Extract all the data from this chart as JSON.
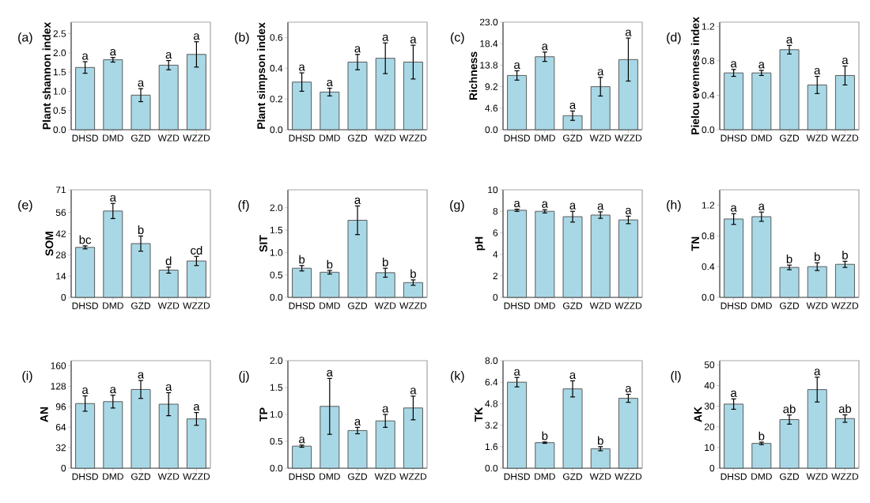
{
  "chart_data": [
    {
      "type": "bar",
      "title": "(a)",
      "ylabel": "Plant shannon index",
      "categories": [
        "DHSD",
        "DMD",
        "GZD",
        "WZD",
        "WZZD"
      ],
      "values": [
        1.62,
        1.82,
        0.9,
        1.68,
        1.96
      ],
      "errors": [
        0.15,
        0.06,
        0.17,
        0.12,
        0.33
      ],
      "color": "#a8d8e6",
      "ylim": [
        0,
        2.8
      ],
      "yticks": [
        {
          "value": 0,
          "label": "0.0"
        },
        0.5,
        {
          "value": 1,
          "label": "1.0"
        },
        1.5,
        {
          "value": 2,
          "label": "2.0"
        },
        2.5
      ],
      "annotations": [
        {
          "text": "a",
          "x": "DHSD",
          "y": 1.77
        },
        {
          "text": "a",
          "x": "DMD",
          "y": 1.88
        },
        {
          "text": "a",
          "x": "GZD",
          "y": 1.07
        },
        {
          "text": "a",
          "x": "WZD",
          "y": 1.8
        },
        {
          "text": "a",
          "x": "WZZD",
          "y": 2.29
        }
      ]
    },
    {
      "type": "bar",
      "title": "(b)",
      "ylabel": "Plant simpson index",
      "categories": [
        "DHSD",
        "DMD",
        "GZD",
        "WZD",
        "WZZD"
      ],
      "values": [
        0.31,
        0.245,
        0.44,
        0.465,
        0.44
      ],
      "errors": [
        0.06,
        0.025,
        0.05,
        0.1,
        0.11
      ],
      "color": "#a8d8e6",
      "ylim": [
        0,
        0.7
      ],
      "yticks": [
        {
          "value": 0,
          "label": "0.0"
        },
        0.2,
        0.4,
        0.6
      ],
      "annotations": [
        {
          "text": "a",
          "x": "DHSD",
          "y": 0.37
        },
        {
          "text": "a",
          "x": "DMD",
          "y": 0.27
        },
        {
          "text": "a",
          "x": "GZD",
          "y": 0.49
        },
        {
          "text": "a",
          "x": "WZD",
          "y": 0.565
        },
        {
          "text": "a",
          "x": "WZZD",
          "y": 0.55
        }
      ]
    },
    {
      "type": "bar",
      "title": "(c)",
      "ylabel": "Richness",
      "categories": [
        "DHSD",
        "DMD",
        "GZD",
        "WZD",
        "WZZD"
      ],
      "values": [
        11.6,
        15.6,
        3.0,
        9.2,
        15.0
      ],
      "errors": [
        1.0,
        1.0,
        1.0,
        2.0,
        4.6
      ],
      "color": "#a8d8e6",
      "ylim": [
        0,
        23
      ],
      "yticks": [
        {
          "value": 0,
          "label": "0.0"
        },
        4.6,
        9.2,
        13.8,
        18.4,
        {
          "value": 23,
          "label": "23.0"
        }
      ],
      "annotations": [
        {
          "text": "a",
          "x": "DHSD",
          "y": 12.6
        },
        {
          "text": "a",
          "x": "DMD",
          "y": 16.6
        },
        {
          "text": "a",
          "x": "GZD",
          "y": 4.0
        },
        {
          "text": "a",
          "x": "WZD",
          "y": 11.2
        },
        {
          "text": "a",
          "x": "WZZD",
          "y": 19.6
        }
      ]
    },
    {
      "type": "bar",
      "title": "(d)",
      "ylabel": "Pielou evenness index",
      "categories": [
        "DHSD",
        "DMD",
        "GZD",
        "WZD",
        "WZZD"
      ],
      "values": [
        0.66,
        0.66,
        0.93,
        0.52,
        0.63
      ],
      "errors": [
        0.04,
        0.03,
        0.05,
        0.1,
        0.11
      ],
      "color": "#a8d8e6",
      "ylim": [
        0,
        1.25
      ],
      "yticks": [
        {
          "value": 0,
          "label": "0.0"
        },
        0.4,
        0.8,
        1.2
      ],
      "annotations": [
        {
          "text": "a",
          "x": "DHSD",
          "y": 0.7
        },
        {
          "text": "a",
          "x": "DMD",
          "y": 0.69
        },
        {
          "text": "a",
          "x": "GZD",
          "y": 0.98
        },
        {
          "text": "a",
          "x": "WZD",
          "y": 0.62
        },
        {
          "text": "a",
          "x": "WZZD",
          "y": 0.74
        }
      ]
    },
    {
      "type": "bar",
      "title": "(e)",
      "ylabel": "SOM",
      "categories": [
        "DHSD",
        "DMD",
        "GZD",
        "WZD",
        "WZZD"
      ],
      "values": [
        33,
        57,
        35.5,
        18,
        24
      ],
      "errors": [
        1,
        5,
        5,
        2,
        3
      ],
      "color": "#a8d8e6",
      "ylim": [
        0,
        71
      ],
      "yticks": [
        0,
        14,
        28,
        42,
        56,
        71
      ],
      "annotations": [
        {
          "text": "bc",
          "x": "DHSD",
          "y": 34
        },
        {
          "text": "a",
          "x": "DMD",
          "y": 62
        },
        {
          "text": "b",
          "x": "GZD",
          "y": 40.5
        },
        {
          "text": "d",
          "x": "WZD",
          "y": 20
        },
        {
          "text": "cd",
          "x": "WZZD",
          "y": 27
        }
      ]
    },
    {
      "type": "bar",
      "title": "(f)",
      "ylabel": "SIT",
      "categories": [
        "DHSD",
        "DMD",
        "GZD",
        "WZD",
        "WZZD"
      ],
      "values": [
        0.65,
        0.56,
        1.72,
        0.55,
        0.33
      ],
      "errors": [
        0.06,
        0.04,
        0.32,
        0.1,
        0.06
      ],
      "color": "#a8d8e6",
      "ylim": [
        0,
        2.4
      ],
      "yticks": [
        {
          "value": 0,
          "label": "0.0"
        },
        0.5,
        {
          "value": 1,
          "label": "1.0"
        },
        1.5,
        {
          "value": 2,
          "label": "2.0"
        }
      ],
      "annotations": [
        {
          "text": "b",
          "x": "DHSD",
          "y": 0.71
        },
        {
          "text": "b",
          "x": "DMD",
          "y": 0.6
        },
        {
          "text": "a",
          "x": "GZD",
          "y": 2.04
        },
        {
          "text": "b",
          "x": "WZD",
          "y": 0.65
        },
        {
          "text": "b",
          "x": "WZZD",
          "y": 0.39
        }
      ]
    },
    {
      "type": "bar",
      "title": "(g)",
      "ylabel": "pH",
      "categories": [
        "DHSD",
        "DMD",
        "GZD",
        "WZD",
        "WZZD"
      ],
      "values": [
        8.1,
        8.0,
        7.5,
        7.65,
        7.2
      ],
      "errors": [
        0.1,
        0.15,
        0.5,
        0.3,
        0.35
      ],
      "color": "#a8d8e6",
      "ylim": [
        0,
        10
      ],
      "yticks": [
        0,
        2,
        4,
        6,
        8,
        10
      ],
      "annotations": [
        {
          "text": "a",
          "x": "DHSD",
          "y": 8.2
        },
        {
          "text": "a",
          "x": "DMD",
          "y": 8.15
        },
        {
          "text": "a",
          "x": "GZD",
          "y": 8.0
        },
        {
          "text": "a",
          "x": "WZD",
          "y": 7.95
        },
        {
          "text": "a",
          "x": "WZZD",
          "y": 7.55
        }
      ]
    },
    {
      "type": "bar",
      "title": "(h)",
      "ylabel": "TN",
      "categories": [
        "DHSD",
        "DMD",
        "GZD",
        "WZD",
        "WZZD"
      ],
      "values": [
        1.02,
        1.05,
        0.39,
        0.4,
        0.43
      ],
      "errors": [
        0.07,
        0.06,
        0.03,
        0.05,
        0.04
      ],
      "color": "#a8d8e6",
      "ylim": [
        0,
        1.4
      ],
      "yticks": [
        {
          "value": 0,
          "label": "0.0"
        },
        0.4,
        0.8,
        1.2
      ],
      "annotations": [
        {
          "text": "a",
          "x": "DHSD",
          "y": 1.09
        },
        {
          "text": "a",
          "x": "DMD",
          "y": 1.11
        },
        {
          "text": "b",
          "x": "GZD",
          "y": 0.42
        },
        {
          "text": "b",
          "x": "WZD",
          "y": 0.45
        },
        {
          "text": "b",
          "x": "WZZD",
          "y": 0.47
        }
      ]
    },
    {
      "type": "bar",
      "title": "(i)",
      "ylabel": "AN",
      "categories": [
        "DHSD",
        "DMD",
        "GZD",
        "WZD",
        "WZZD"
      ],
      "values": [
        101,
        104,
        123,
        100,
        77
      ],
      "errors": [
        12,
        10,
        14,
        18,
        10
      ],
      "color": "#a8d8e6",
      "ylim": [
        0,
        168
      ],
      "yticks": [
        0,
        32,
        64,
        96,
        128,
        160
      ],
      "annotations": [
        {
          "text": "a",
          "x": "DHSD",
          "y": 113
        },
        {
          "text": "a",
          "x": "DMD",
          "y": 114
        },
        {
          "text": "a",
          "x": "GZD",
          "y": 137
        },
        {
          "text": "a",
          "x": "WZD",
          "y": 118
        },
        {
          "text": "a",
          "x": "WZZD",
          "y": 87
        }
      ]
    },
    {
      "type": "bar",
      "title": "(j)",
      "ylabel": "TP",
      "categories": [
        "DHSD",
        "DMD",
        "GZD",
        "WZD",
        "WZZD"
      ],
      "values": [
        0.41,
        1.15,
        0.7,
        0.88,
        1.12
      ],
      "errors": [
        0.02,
        0.52,
        0.06,
        0.12,
        0.22
      ],
      "color": "#a8d8e6",
      "ylim": [
        0,
        2
      ],
      "yticks": [
        {
          "value": 0,
          "label": "0.0"
        },
        0.5,
        {
          "value": 1,
          "label": "1.0"
        },
        1.5,
        {
          "value": 2,
          "label": "2.0"
        }
      ],
      "annotations": [
        {
          "text": "a",
          "x": "DHSD",
          "y": 0.43
        },
        {
          "text": "a",
          "x": "DMD",
          "y": 1.67
        },
        {
          "text": "a",
          "x": "GZD",
          "y": 0.76
        },
        {
          "text": "a",
          "x": "WZD",
          "y": 1.0
        },
        {
          "text": "a",
          "x": "WZZD",
          "y": 1.34
        }
      ]
    },
    {
      "type": "bar",
      "title": "(k)",
      "ylabel": "TK",
      "categories": [
        "DHSD",
        "DMD",
        "GZD",
        "WZD",
        "WZZD"
      ],
      "values": [
        6.4,
        1.9,
        5.9,
        1.45,
        5.2
      ],
      "errors": [
        0.35,
        0.05,
        0.6,
        0.15,
        0.3
      ],
      "color": "#a8d8e6",
      "ylim": [
        0,
        8
      ],
      "yticks": [
        {
          "value": 0,
          "label": "0.0"
        },
        1.6,
        3.2,
        4.8,
        6.4,
        {
          "value": 8,
          "label": "8.0"
        }
      ],
      "annotations": [
        {
          "text": "a",
          "x": "DHSD",
          "y": 6.75
        },
        {
          "text": "b",
          "x": "DMD",
          "y": 1.95
        },
        {
          "text": "a",
          "x": "GZD",
          "y": 6.5
        },
        {
          "text": "b",
          "x": "WZD",
          "y": 1.6
        },
        {
          "text": "a",
          "x": "WZZD",
          "y": 5.5
        }
      ]
    },
    {
      "type": "bar",
      "title": "(l)",
      "ylabel": "AK",
      "categories": [
        "DHSD",
        "DMD",
        "GZD",
        "WZD",
        "WZZD"
      ],
      "values": [
        31,
        12,
        23.5,
        38,
        24
      ],
      "errors": [
        2.5,
        0.6,
        2.2,
        6,
        1.8
      ],
      "color": "#a8d8e6",
      "ylim": [
        0,
        52
      ],
      "yticks": [
        0,
        10,
        20,
        30,
        40,
        50
      ],
      "annotations": [
        {
          "text": "a",
          "x": "DHSD",
          "y": 33.5
        },
        {
          "text": "b",
          "x": "DMD",
          "y": 12.6
        },
        {
          "text": "ab",
          "x": "GZD",
          "y": 25.7
        },
        {
          "text": "a",
          "x": "WZD",
          "y": 44
        },
        {
          "text": "ab",
          "x": "WZZD",
          "y": 25.8
        }
      ]
    }
  ]
}
